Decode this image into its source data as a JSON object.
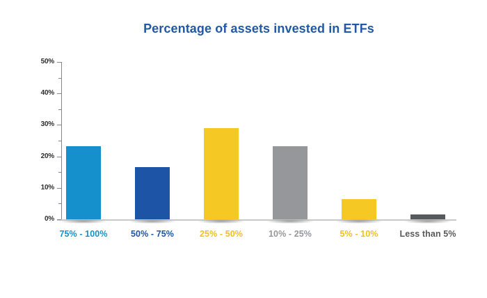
{
  "chart_data": {
    "type": "bar",
    "title": "Percentage of assets invested in ETFs",
    "title_color": "#2159A7",
    "categories": [
      "75% - 100%",
      "50% - 75%",
      "25% - 50%",
      "10% - 25%",
      "5% - 10%",
      "Less than 5%"
    ],
    "values": [
      23.3,
      16.5,
      28.9,
      23.3,
      6.4,
      1.6
    ],
    "bar_colors": [
      "#1590CC",
      "#1D54A6",
      "#F5C823",
      "#95979A",
      "#F5C823",
      "#58595B"
    ],
    "label_colors": [
      "#1590CC",
      "#1D54A6",
      "#F0C11E",
      "#95979A",
      "#F0C11E",
      "#58595B"
    ],
    "xlabel": "",
    "ylabel": "",
    "ylim": [
      0,
      50
    ],
    "ytick_labels": [
      "0%",
      "10%",
      "20%",
      "30%",
      "40%",
      "50%"
    ],
    "y_major_step": 10,
    "y_minor_step": 5,
    "grid": false,
    "legend": false,
    "colors": {
      "axis": "#858585",
      "baseline": "#c9c9c9",
      "tick_label": "#2e2e2e",
      "background": "#ffffff"
    }
  }
}
